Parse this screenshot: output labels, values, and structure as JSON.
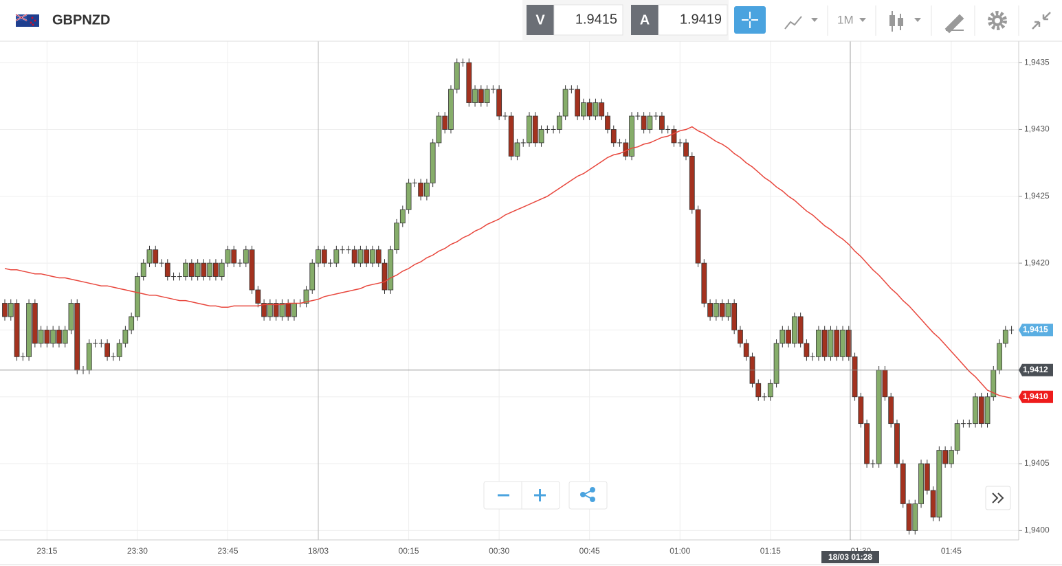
{
  "toolbar": {
    "symbol": "GBPNZD",
    "bid_label": "V",
    "bid": "1.9415",
    "ask_label": "A",
    "ask": "1.9419",
    "timeframe": "1M"
  },
  "chart_data": {
    "type": "candlestick",
    "categories": [
      null,
      null,
      null,
      null,
      null,
      null,
      null,
      "23:15",
      null,
      null,
      null,
      null,
      null,
      null,
      null,
      null,
      null,
      null,
      null,
      null,
      null,
      null,
      "23:30",
      null,
      null,
      null,
      null,
      null,
      null,
      null,
      null,
      null,
      null,
      null,
      null,
      null,
      null,
      "23:45",
      null,
      null,
      null,
      null,
      null,
      null,
      null,
      null,
      null,
      null,
      null,
      null,
      null,
      null,
      "18/03",
      null,
      null,
      null,
      null,
      null,
      null,
      null,
      null,
      null,
      null,
      null,
      null,
      null,
      null,
      "00:15",
      null,
      null,
      null,
      null,
      null,
      null,
      null,
      null,
      null,
      null,
      null,
      null,
      null,
      null,
      "00:30",
      null,
      null,
      null,
      null,
      null,
      null,
      null,
      null,
      null,
      null,
      null,
      null,
      null,
      null,
      "00:45",
      null,
      null,
      null,
      null,
      null,
      null,
      null,
      null,
      null,
      null,
      null,
      null,
      null,
      null,
      "01:00",
      null,
      null,
      null,
      null,
      null,
      null,
      null,
      null,
      null,
      null,
      null,
      null,
      null,
      null,
      "01:15",
      null,
      null,
      null,
      null,
      null,
      null,
      null,
      null,
      null,
      null,
      null,
      null,
      null,
      null,
      "01:30",
      null,
      null,
      null,
      null,
      null,
      null,
      null,
      null,
      null,
      null,
      null,
      null,
      null,
      null,
      "01:45",
      null,
      null,
      null,
      null,
      null,
      null,
      null,
      null,
      null,
      null
    ],
    "open": [
      1.9417,
      1.9416,
      1.9417,
      1.9413,
      1.9413,
      1.9417,
      1.9414,
      1.9415,
      1.9414,
      1.9415,
      1.9414,
      1.9415,
      1.9417,
      1.9412,
      1.9412,
      1.9414,
      1.9414,
      1.9414,
      1.9413,
      1.9413,
      1.9414,
      1.9415,
      1.9416,
      1.9419,
      1.942,
      1.9421,
      1.942,
      1.942,
      1.9419,
      1.9419,
      1.9419,
      1.942,
      1.9419,
      1.942,
      1.9419,
      1.942,
      1.9419,
      1.942,
      1.9421,
      1.942,
      1.942,
      1.9421,
      1.9418,
      1.9417,
      1.9416,
      1.9417,
      1.9416,
      1.9417,
      1.9416,
      1.9417,
      1.9417,
      1.9418,
      1.942,
      1.9421,
      1.942,
      1.942,
      1.9421,
      1.9421,
      1.9421,
      1.942,
      1.9421,
      1.942,
      1.9421,
      1.942,
      1.9418,
      1.9421,
      1.9423,
      1.9424,
      1.9426,
      1.9426,
      1.9425,
      1.9426,
      1.9429,
      1.9431,
      1.943,
      1.9433,
      1.9435,
      1.9435,
      1.9432,
      1.9433,
      1.9432,
      1.9433,
      1.9433,
      1.9431,
      1.9431,
      1.9428,
      1.9429,
      1.9429,
      1.9431,
      1.9429,
      1.943,
      1.943,
      1.943,
      1.9431,
      1.9433,
      1.9433,
      1.9431,
      1.9432,
      1.9431,
      1.9432,
      1.9431,
      1.943,
      1.9429,
      1.9429,
      1.9428,
      1.9431,
      1.9431,
      1.943,
      1.9431,
      1.9431,
      1.943,
      1.943,
      1.9429,
      1.9429,
      1.9428,
      1.9424,
      1.942,
      1.9417,
      1.9416,
      1.9417,
      1.9416,
      1.9417,
      1.9415,
      1.9414,
      1.9413,
      1.9411,
      1.941,
      1.941,
      1.9411,
      1.9414,
      1.9415,
      1.9414,
      1.9416,
      1.9414,
      1.9413,
      1.9413,
      1.9415,
      1.9413,
      1.9415,
      1.9413,
      1.9415,
      1.9413,
      1.941,
      1.9408,
      1.9405,
      1.9405,
      1.9412,
      1.941,
      1.9408,
      1.9405,
      1.9402,
      1.94,
      1.9402,
      1.9405,
      1.9403,
      1.9401,
      1.9406,
      1.9405,
      1.9406,
      1.9408,
      1.9408,
      1.9408,
      1.941,
      1.9408,
      1.941,
      1.9412,
      1.9414,
      1.9415
    ],
    "close": [
      1.9416,
      1.9417,
      1.9413,
      1.9413,
      1.9417,
      1.9414,
      1.9415,
      1.9414,
      1.9415,
      1.9414,
      1.9415,
      1.9417,
      1.9412,
      1.9412,
      1.9414,
      1.9414,
      1.9414,
      1.9413,
      1.9413,
      1.9414,
      1.9415,
      1.9416,
      1.9419,
      1.942,
      1.9421,
      1.942,
      1.942,
      1.9419,
      1.9419,
      1.9419,
      1.942,
      1.9419,
      1.942,
      1.9419,
      1.942,
      1.9419,
      1.942,
      1.9421,
      1.942,
      1.942,
      1.9421,
      1.9418,
      1.9417,
      1.9416,
      1.9417,
      1.9416,
      1.9417,
      1.9416,
      1.9417,
      1.9417,
      1.9418,
      1.942,
      1.9421,
      1.942,
      1.942,
      1.9421,
      1.9421,
      1.9421,
      1.942,
      1.9421,
      1.942,
      1.9421,
      1.942,
      1.9418,
      1.9421,
      1.9423,
      1.9424,
      1.9426,
      1.9426,
      1.9425,
      1.9426,
      1.9429,
      1.9431,
      1.943,
      1.9433,
      1.9435,
      1.9435,
      1.9432,
      1.9433,
      1.9432,
      1.9433,
      1.9433,
      1.9431,
      1.9431,
      1.9428,
      1.9429,
      1.9429,
      1.9431,
      1.9429,
      1.943,
      1.943,
      1.943,
      1.9431,
      1.9433,
      1.9433,
      1.9431,
      1.9432,
      1.9431,
      1.9432,
      1.9431,
      1.943,
      1.9429,
      1.9429,
      1.9428,
      1.9431,
      1.9431,
      1.943,
      1.9431,
      1.9431,
      1.943,
      1.943,
      1.9429,
      1.9429,
      1.9428,
      1.9424,
      1.942,
      1.9417,
      1.9416,
      1.9417,
      1.9416,
      1.9417,
      1.9415,
      1.9414,
      1.9413,
      1.9411,
      1.941,
      1.941,
      1.9411,
      1.9414,
      1.9415,
      1.9414,
      1.9416,
      1.9414,
      1.9413,
      1.9413,
      1.9415,
      1.9413,
      1.9415,
      1.9413,
      1.9415,
      1.9413,
      1.941,
      1.9408,
      1.9405,
      1.9405,
      1.9412,
      1.941,
      1.9408,
      1.9405,
      1.9402,
      1.94,
      1.9402,
      1.9405,
      1.9403,
      1.9401,
      1.9406,
      1.9405,
      1.9406,
      1.9408,
      1.9408,
      1.9408,
      1.941,
      1.9408,
      1.941,
      1.9412,
      1.9414,
      1.9415,
      1.9415
    ],
    "high": [
      1.94173,
      1.94173,
      1.94173,
      1.94133,
      1.94173,
      1.94173,
      1.94153,
      1.94153,
      1.94153,
      1.94153,
      1.94153,
      1.94173,
      1.94173,
      1.94123,
      1.94143,
      1.94143,
      1.94143,
      1.94143,
      1.94133,
      1.94143,
      1.94153,
      1.94163,
      1.94193,
      1.94203,
      1.94213,
      1.94213,
      1.94203,
      1.94203,
      1.94193,
      1.94193,
      1.94203,
      1.94203,
      1.94203,
      1.94203,
      1.94203,
      1.94203,
      1.94203,
      1.94213,
      1.94213,
      1.94203,
      1.94213,
      1.94213,
      1.94183,
      1.94173,
      1.94173,
      1.94173,
      1.94173,
      1.94173,
      1.94173,
      1.94173,
      1.94183,
      1.94203,
      1.94213,
      1.94213,
      1.94203,
      1.94213,
      1.94213,
      1.94213,
      1.94213,
      1.94213,
      1.94213,
      1.94213,
      1.94213,
      1.94203,
      1.94213,
      1.94233,
      1.94243,
      1.94263,
      1.94263,
      1.94263,
      1.94263,
      1.94293,
      1.94313,
      1.94313,
      1.94333,
      1.94353,
      1.94353,
      1.94353,
      1.94333,
      1.94333,
      1.94333,
      1.94333,
      1.94333,
      1.94313,
      1.94313,
      1.94293,
      1.94293,
      1.94313,
      1.94313,
      1.94303,
      1.94303,
      1.94303,
      1.94313,
      1.94333,
      1.94333,
      1.94333,
      1.94323,
      1.94323,
      1.94323,
      1.94323,
      1.94313,
      1.94303,
      1.94293,
      1.94293,
      1.94313,
      1.94313,
      1.94313,
      1.94313,
      1.94313,
      1.94313,
      1.94303,
      1.94303,
      1.94293,
      1.94293,
      1.94283,
      1.94243,
      1.94203,
      1.94173,
      1.94173,
      1.94173,
      1.94173,
      1.94173,
      1.94153,
      1.94143,
      1.94133,
      1.94113,
      1.94103,
      1.94113,
      1.94143,
      1.94153,
      1.94153,
      1.94163,
      1.94163,
      1.94143,
      1.94133,
      1.94153,
      1.94153,
      1.94153,
      1.94153,
      1.94153,
      1.94153,
      1.94133,
      1.94103,
      1.94083,
      1.94053,
      1.94123,
      1.94123,
      1.94103,
      1.94083,
      1.94053,
      1.94023,
      1.94023,
      1.94053,
      1.94053,
      1.94033,
      1.94063,
      1.94063,
      1.94063,
      1.94083,
      1.94083,
      1.94083,
      1.94103,
      1.94103,
      1.94103,
      1.94123,
      1.94143,
      1.94153,
      1.94153
    ],
    "low": [
      1.94157,
      1.94157,
      1.94127,
      1.94127,
      1.94127,
      1.94137,
      1.94137,
      1.94137,
      1.94137,
      1.94137,
      1.94137,
      1.94147,
      1.94117,
      1.94117,
      1.94117,
      1.94137,
      1.94137,
      1.94127,
      1.94127,
      1.94127,
      1.94137,
      1.94147,
      1.94157,
      1.94187,
      1.94197,
      1.94197,
      1.94197,
      1.94187,
      1.94187,
      1.94187,
      1.94187,
      1.94187,
      1.94187,
      1.94187,
      1.94187,
      1.94187,
      1.94187,
      1.94197,
      1.94197,
      1.94197,
      1.94197,
      1.94177,
      1.94167,
      1.94157,
      1.94157,
      1.94157,
      1.94157,
      1.94157,
      1.94157,
      1.94167,
      1.94167,
      1.94177,
      1.94197,
      1.94197,
      1.94197,
      1.94197,
      1.94207,
      1.94207,
      1.94197,
      1.94197,
      1.94197,
      1.94197,
      1.94197,
      1.94177,
      1.94177,
      1.94207,
      1.94227,
      1.94237,
      1.94257,
      1.94247,
      1.94247,
      1.94257,
      1.94287,
      1.94297,
      1.94297,
      1.94327,
      1.94347,
      1.94317,
      1.94317,
      1.94317,
      1.94317,
      1.94327,
      1.94307,
      1.94307,
      1.94277,
      1.94277,
      1.94287,
      1.94287,
      1.94287,
      1.94287,
      1.94297,
      1.94297,
      1.94297,
      1.94307,
      1.94327,
      1.94307,
      1.94307,
      1.94307,
      1.94307,
      1.94307,
      1.94297,
      1.94287,
      1.94287,
      1.94277,
      1.94277,
      1.94307,
      1.94297,
      1.94297,
      1.94307,
      1.94297,
      1.94297,
      1.94287,
      1.94287,
      1.94277,
      1.94237,
      1.94197,
      1.94167,
      1.94157,
      1.94157,
      1.94157,
      1.94157,
      1.94147,
      1.94137,
      1.94127,
      1.94107,
      1.94097,
      1.94097,
      1.94097,
      1.94107,
      1.94137,
      1.94137,
      1.94137,
      1.94137,
      1.94127,
      1.94127,
      1.94127,
      1.94127,
      1.94127,
      1.94127,
      1.94127,
      1.94127,
      1.94097,
      1.94077,
      1.94047,
      1.94047,
      1.94047,
      1.94097,
      1.94077,
      1.94047,
      1.94017,
      1.93997,
      1.93997,
      1.94017,
      1.94027,
      1.94007,
      1.94007,
      1.94047,
      1.94047,
      1.94057,
      1.94077,
      1.94077,
      1.94077,
      1.94077,
      1.94077,
      1.94097,
      1.94117,
      1.94137,
      1.94147
    ],
    "up_color": "#86ad6a",
    "down_color": "#a3321f",
    "moving_average": {
      "color": "#e8463c",
      "values": [
        1.94196,
        1.94195,
        1.94195,
        1.94194,
        1.94193,
        1.94192,
        1.94192,
        1.94191,
        1.9419,
        1.94189,
        1.94189,
        1.94188,
        1.94187,
        1.94186,
        1.94185,
        1.94184,
        1.94183,
        1.94183,
        1.94182,
        1.94181,
        1.9418,
        1.94179,
        1.94178,
        1.94177,
        1.94176,
        1.94176,
        1.94175,
        1.94174,
        1.94173,
        1.94172,
        1.94172,
        1.94171,
        1.9417,
        1.94169,
        1.94168,
        1.94168,
        1.94167,
        1.94167,
        1.94168,
        1.94168,
        1.94168,
        1.94168,
        1.94168,
        1.94169,
        1.94169,
        1.94169,
        1.94169,
        1.9417,
        1.9417,
        1.9417,
        1.94171,
        1.94172,
        1.94173,
        1.94175,
        1.94176,
        1.94177,
        1.94178,
        1.94179,
        1.9418,
        1.94181,
        1.94183,
        1.94184,
        1.94185,
        1.94186,
        1.94189,
        1.94191,
        1.94194,
        1.94196,
        1.94199,
        1.94201,
        1.94204,
        1.94206,
        1.94209,
        1.94211,
        1.94214,
        1.94216,
        1.94219,
        1.94221,
        1.94224,
        1.94226,
        1.94229,
        1.94231,
        1.94233,
        1.94236,
        1.94238,
        1.9424,
        1.94242,
        1.94244,
        1.94246,
        1.94248,
        1.9425,
        1.94253,
        1.94256,
        1.94259,
        1.94262,
        1.94265,
        1.94267,
        1.9427,
        1.94273,
        1.94276,
        1.94279,
        1.94281,
        1.94282,
        1.94284,
        1.94286,
        1.94287,
        1.94289,
        1.9429,
        1.94292,
        1.94294,
        1.94295,
        1.94297,
        1.94299,
        1.943,
        1.94302,
        1.94299,
        1.94297,
        1.94294,
        1.94291,
        1.94289,
        1.94286,
        1.94282,
        1.94279,
        1.94275,
        1.94272,
        1.94268,
        1.94264,
        1.94261,
        1.94257,
        1.94254,
        1.9425,
        1.94247,
        1.94243,
        1.94239,
        1.94236,
        1.94232,
        1.94228,
        1.94225,
        1.94221,
        1.94218,
        1.94214,
        1.94209,
        1.94205,
        1.942,
        1.94195,
        1.94191,
        1.94186,
        1.94181,
        1.94177,
        1.94172,
        1.94168,
        1.94163,
        1.94158,
        1.94153,
        1.94148,
        1.94144,
        1.94139,
        1.94134,
        1.94129,
        1.94124,
        1.94119,
        1.94115,
        1.9411,
        1.94105,
        1.94103,
        1.94101,
        1.941,
        1.94099
      ]
    },
    "ylim": [
      1.93993,
      1.94366
    ],
    "yticks": [
      {
        "value": 1.94,
        "label": "1,9400"
      },
      {
        "value": 1.9405,
        "label": "1,9405"
      },
      {
        "value": 1.941,
        "label": "1,9410"
      },
      {
        "value": 1.9415,
        "label": "1,9415"
      },
      {
        "value": 1.942,
        "label": "1,9420"
      },
      {
        "value": 1.9425,
        "label": "1,9425"
      },
      {
        "value": 1.943,
        "label": "1,9430"
      },
      {
        "value": 1.9435,
        "label": "1,9435"
      }
    ],
    "grid": true,
    "price_tags": [
      {
        "value": 1.9415,
        "label": "1,9415",
        "color": "#5aaee2"
      },
      {
        "value": 1.941,
        "label": "1,9410",
        "color": "#ee1c1c"
      }
    ],
    "crosshair": {
      "value": 1.9412,
      "label": "1,9412",
      "time_label": "18/03 01:28"
    }
  }
}
